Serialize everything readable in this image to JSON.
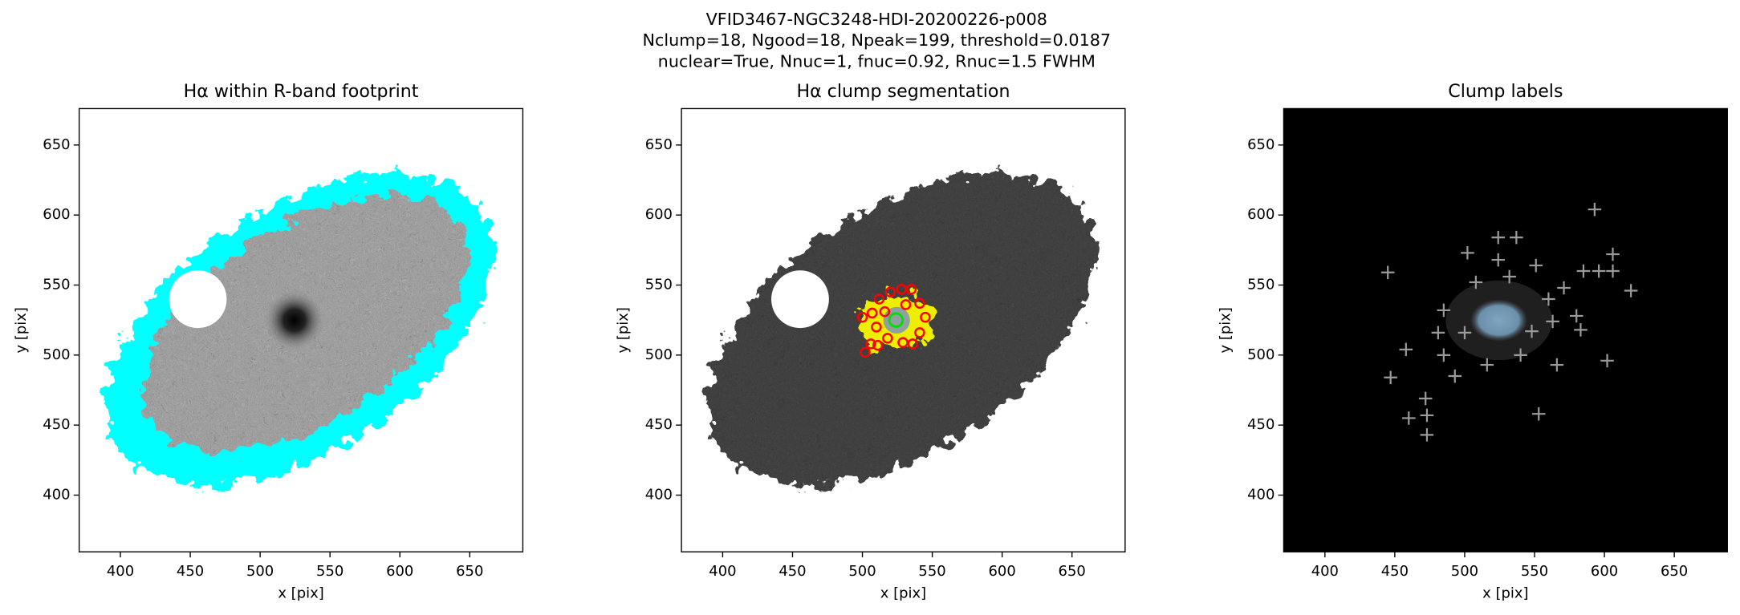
{
  "suptitle": [
    "VFID3467-NGC3248-HDI-20200226-p008",
    "Nclump=18, Ngood=18, Npeak=199, threshold=0.0187",
    "nuclear=True, Nnuc=1, fnuc=0.92, Rnuc=1.5 FWHM"
  ],
  "chart_data": [
    {
      "type": "image",
      "title": "Hα within R-band footprint",
      "xlabel": "x [pix]",
      "ylabel": "y [pix]",
      "xlim": [
        370.5,
        688
      ],
      "ylim": [
        359.5,
        676
      ],
      "xticks": [
        400,
        450,
        500,
        550,
        600,
        650
      ],
      "yticks": [
        400,
        450,
        500,
        550,
        600,
        650
      ]
    },
    {
      "type": "scatter",
      "marker": "circle",
      "title": "Hα clump segmentation",
      "xlabel": "x [pix]",
      "ylabel": "y [pix]",
      "xlim": [
        370.5,
        688
      ],
      "ylim": [
        359.5,
        676
      ],
      "xticks": [
        400,
        450,
        500,
        550,
        600,
        650
      ],
      "yticks": [
        400,
        450,
        500,
        550,
        600,
        650
      ],
      "color": "#ff0000",
      "x": [
        502,
        506,
        511,
        518,
        529,
        536,
        541,
        545,
        541,
        535,
        528,
        520,
        512,
        507,
        500,
        510,
        516,
        531
      ],
      "y": [
        502,
        508,
        507,
        512,
        509,
        508,
        516,
        527,
        537,
        547,
        547,
        545,
        540,
        530,
        527,
        520,
        531,
        536
      ],
      "nucleus": {
        "x": 524,
        "y": 525,
        "color": "#00dd00"
      }
    },
    {
      "type": "scatter",
      "marker": "plus",
      "title": "Clump labels",
      "xlabel": "x [pix]",
      "ylabel": "y [pix]",
      "xlim": [
        370.5,
        688
      ],
      "ylim": [
        359.5,
        676
      ],
      "xticks": [
        400,
        450,
        500,
        550,
        600,
        650
      ],
      "yticks": [
        400,
        450,
        500,
        550,
        600,
        650
      ],
      "color": "#9a9a9a",
      "x": [
        445,
        447,
        458,
        460,
        472,
        473,
        473,
        593,
        602,
        619,
        553,
        502,
        524,
        537,
        585,
        596,
        606,
        606,
        583,
        566,
        485,
        493,
        516,
        540,
        548,
        560,
        532,
        508,
        485,
        481,
        563,
        580,
        551,
        524,
        500,
        571
      ],
      "y": [
        559,
        484,
        504,
        455,
        469,
        457,
        443,
        604,
        496,
        546,
        458,
        573,
        584,
        584,
        560,
        560,
        572,
        560,
        518,
        493,
        500,
        485,
        493,
        500,
        517,
        540,
        556,
        552,
        532,
        516,
        524,
        528,
        564,
        568,
        516,
        548
      ]
    }
  ]
}
